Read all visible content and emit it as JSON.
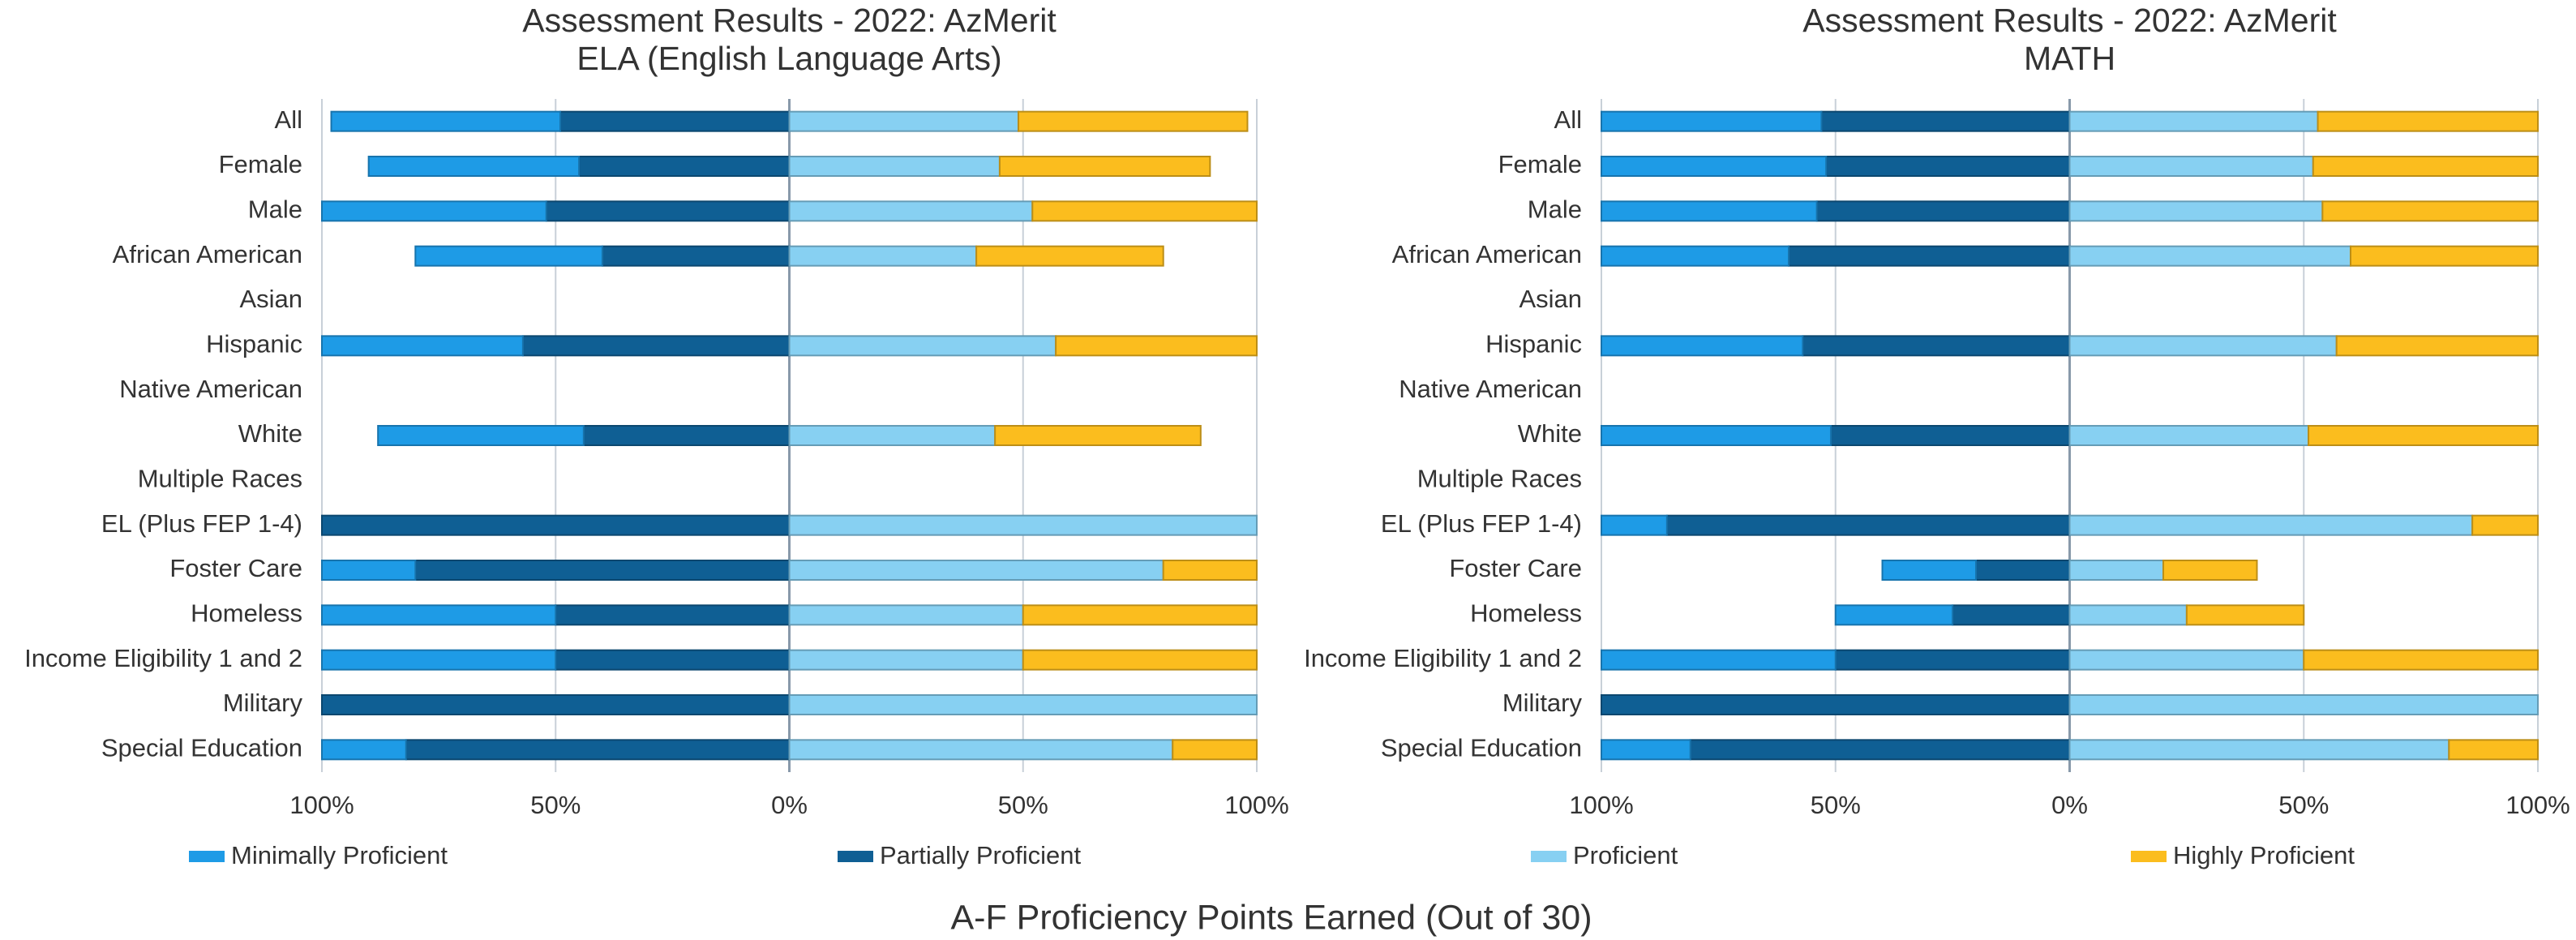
{
  "chart_data": [
    {
      "type": "bar",
      "title": "Assessment Results - 2022: AzMerit",
      "subtitle": "ELA (English Language Arts)",
      "categories": [
        "All",
        "Female",
        "Male",
        "African American",
        "Asian",
        "Hispanic",
        "Native American",
        "White",
        "Multiple Races",
        "EL (Plus FEP 1-4)",
        "Foster Care",
        "Homeless",
        "Income Eligibility 1 and 2",
        "Military",
        "Special Education"
      ],
      "series": [
        {
          "name": "Minimally Proficient",
          "color": "#1e9be6",
          "values": [
            -49,
            -45,
            -48,
            -40,
            null,
            -43,
            null,
            -44,
            null,
            0,
            -20,
            -50,
            -50,
            0,
            -18
          ]
        },
        {
          "name": "Partially Proficient",
          "color": "#0f5f94",
          "values": [
            -49,
            -45,
            -52,
            -40,
            null,
            -57,
            null,
            -44,
            null,
            -100,
            -80,
            -50,
            -50,
            -100,
            -82
          ]
        },
        {
          "name": "Proficient",
          "color": "#87d0f2",
          "values": [
            49,
            45,
            52,
            40,
            null,
            57,
            null,
            44,
            null,
            100,
            80,
            50,
            50,
            100,
            82
          ]
        },
        {
          "name": "Highly Proficient",
          "color": "#fbbd1e",
          "values": [
            49,
            45,
            48,
            40,
            null,
            43,
            null,
            44,
            null,
            0,
            20,
            50,
            50,
            0,
            18
          ]
        }
      ],
      "xlim": [
        -100,
        100
      ],
      "xticks": [
        {
          "value": -100,
          "label": "100%"
        },
        {
          "value": -50,
          "label": "50%"
        },
        {
          "value": 0,
          "label": "0%"
        },
        {
          "value": 50,
          "label": "50%"
        },
        {
          "value": 100,
          "label": "100%"
        }
      ],
      "grid": true
    },
    {
      "type": "bar",
      "title": "Assessment Results - 2022: AzMerit",
      "subtitle": "MATH",
      "categories": [
        "All",
        "Female",
        "Male",
        "African American",
        "Asian",
        "Hispanic",
        "Native American",
        "White",
        "Multiple Races",
        "EL (Plus FEP 1-4)",
        "Foster Care",
        "Homeless",
        "Income Eligibility 1 and 2",
        "Military",
        "Special Education"
      ],
      "series": [
        {
          "name": "Minimally Proficient",
          "color": "#1e9be6",
          "values": [
            -47,
            -48,
            -46,
            -40,
            null,
            -43,
            null,
            -49,
            null,
            -14,
            -20,
            -25,
            -50,
            0,
            -19
          ]
        },
        {
          "name": "Partially Proficient",
          "color": "#0f5f94",
          "values": [
            -53,
            -52,
            -54,
            -60,
            null,
            -57,
            null,
            -51,
            null,
            -86,
            -20,
            -25,
            -50,
            -100,
            -81
          ]
        },
        {
          "name": "Proficient",
          "color": "#87d0f2",
          "values": [
            53,
            52,
            54,
            60,
            null,
            57,
            null,
            51,
            null,
            86,
            20,
            25,
            50,
            100,
            81
          ]
        },
        {
          "name": "Highly Proficient",
          "color": "#fbbd1e",
          "values": [
            47,
            48,
            46,
            40,
            null,
            43,
            null,
            49,
            null,
            14,
            20,
            25,
            50,
            0,
            19
          ]
        }
      ],
      "xlim": [
        -100,
        100
      ],
      "xticks": [
        {
          "value": -100,
          "label": "100%"
        },
        {
          "value": -50,
          "label": "50%"
        },
        {
          "value": 0,
          "label": "0%"
        },
        {
          "value": 50,
          "label": "50%"
        },
        {
          "value": 100,
          "label": "100%"
        }
      ],
      "grid": true
    }
  ],
  "caption": "A-F Proficiency Points Earned (Out of 30)"
}
